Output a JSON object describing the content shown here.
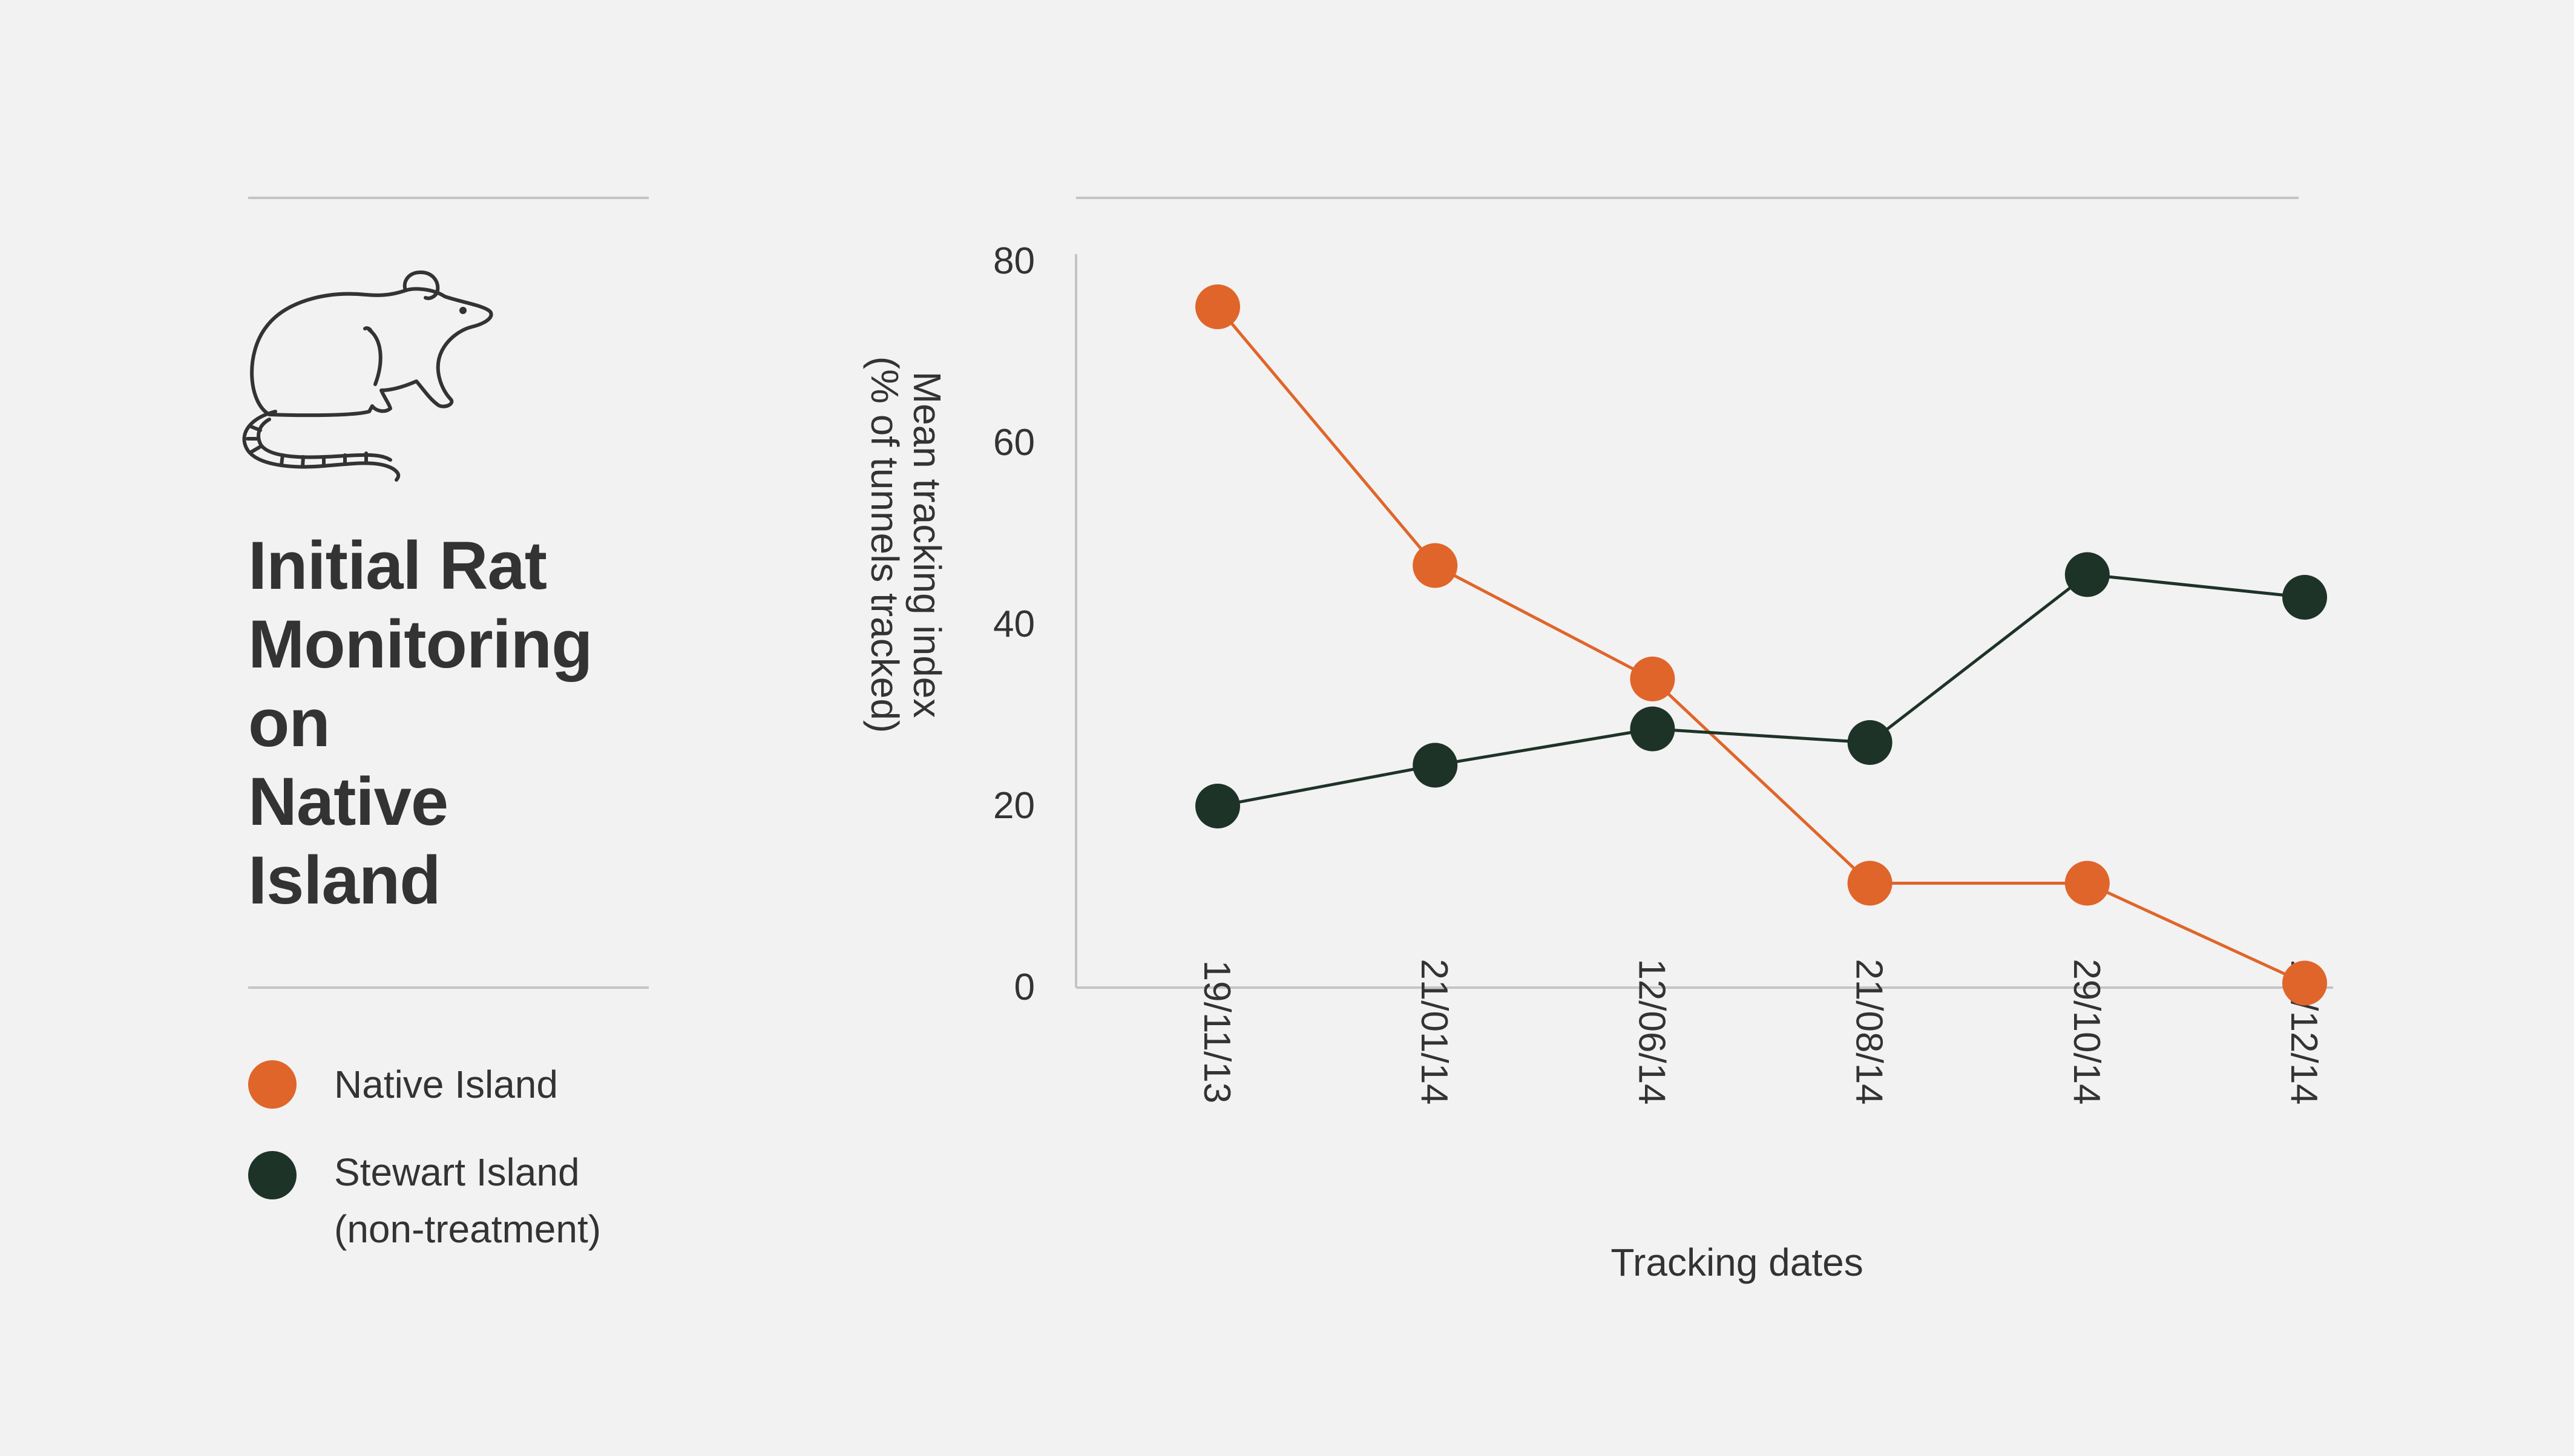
{
  "title_lines": [
    "Initial Rat",
    "Monitoring",
    "on",
    "Native",
    "Island"
  ],
  "legend": [
    {
      "label_lines": [
        "Native Island"
      ],
      "color": "#e0652a"
    },
    {
      "label_lines": [
        "Stewart Island",
        "(non-treatment)"
      ],
      "color": "#1e3327"
    }
  ],
  "icons": {
    "rat": "rat-icon"
  },
  "chart_data": {
    "type": "line",
    "title": "Initial Rat Monitoring on Native Island",
    "xlabel": "Tracking dates",
    "ylabel_lines": [
      "Mean tracking index",
      "(% of tunnels tracked)"
    ],
    "categories": [
      "19/11/13",
      "21/01/14",
      "12/06/14",
      "21/08/14",
      "29/10/14",
      "10/12/14"
    ],
    "ylim": [
      0,
      80
    ],
    "yticks": [
      0,
      20,
      40,
      60,
      80
    ],
    "grid": false,
    "legend_position": "left",
    "series": [
      {
        "name": "Native Island",
        "color": "#e0652a",
        "values": [
          75,
          46.5,
          34,
          11.5,
          11.5,
          0.5
        ]
      },
      {
        "name": "Stewart Island (non-treatment)",
        "color": "#1e3327",
        "values": [
          20,
          24.5,
          28.5,
          27,
          45.5,
          43
        ]
      }
    ]
  }
}
